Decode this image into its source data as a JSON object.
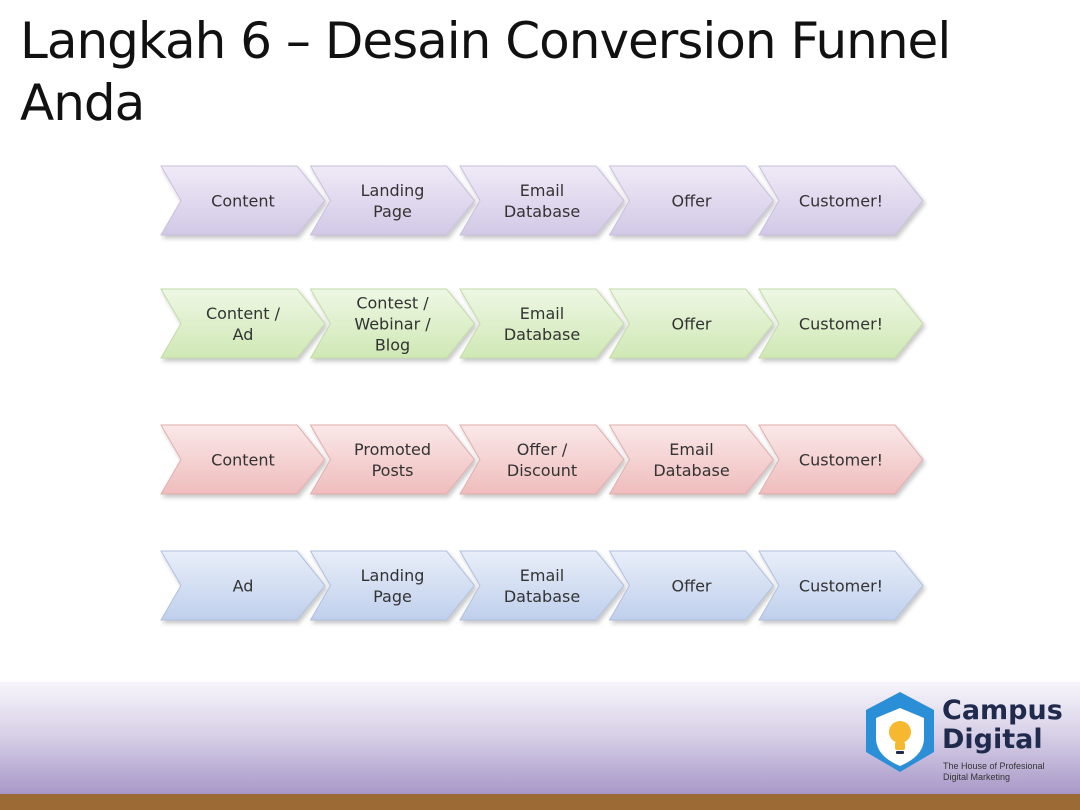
{
  "slide": {
    "title_line1": "Langkah 6 – Desain Conversion Funnel",
    "title_line2": "Anda"
  },
  "funnels": [
    {
      "color": "purple",
      "steps": [
        [
          "Content"
        ],
        [
          "Landing",
          "Page"
        ],
        [
          "Email",
          "Database"
        ],
        [
          "Offer"
        ],
        [
          "Customer!"
        ]
      ]
    },
    {
      "color": "green",
      "steps": [
        [
          "Content /",
          "Ad"
        ],
        [
          "Contest /",
          "Webinar /",
          "Blog"
        ],
        [
          "Email",
          "Database"
        ],
        [
          "Offer"
        ],
        [
          "Customer!"
        ]
      ]
    },
    {
      "color": "red",
      "steps": [
        [
          "Content"
        ],
        [
          "Promoted",
          "Posts"
        ],
        [
          "Offer /",
          "Discount"
        ],
        [
          "Email",
          "Database"
        ],
        [
          "Customer!"
        ]
      ]
    },
    {
      "color": "blue",
      "steps": [
        [
          "Ad"
        ],
        [
          "Landing",
          "Page"
        ],
        [
          "Email",
          "Database"
        ],
        [
          "Offer"
        ],
        [
          "Customer!"
        ]
      ]
    }
  ],
  "palette": {
    "purple": {
      "top": "#efeaf7",
      "bottom": "#d2c8e6",
      "stroke": "#c9bfdc"
    },
    "green": {
      "top": "#eef7e4",
      "bottom": "#cfe8b4",
      "stroke": "#c3dba7"
    },
    "red": {
      "top": "#fae8e8",
      "bottom": "#efbcbc",
      "stroke": "#e2adad"
    },
    "blue": {
      "top": "#e8eef9",
      "bottom": "#bfcfec",
      "stroke": "#afc0df"
    }
  },
  "logo": {
    "name_line1": "Campus",
    "name_line2": "Digital",
    "tagline_line1": "The House of Profesional",
    "tagline_line2": "Digital Marketing",
    "brand_color": "#2b8fd8",
    "accent_color": "#f5b82e"
  }
}
